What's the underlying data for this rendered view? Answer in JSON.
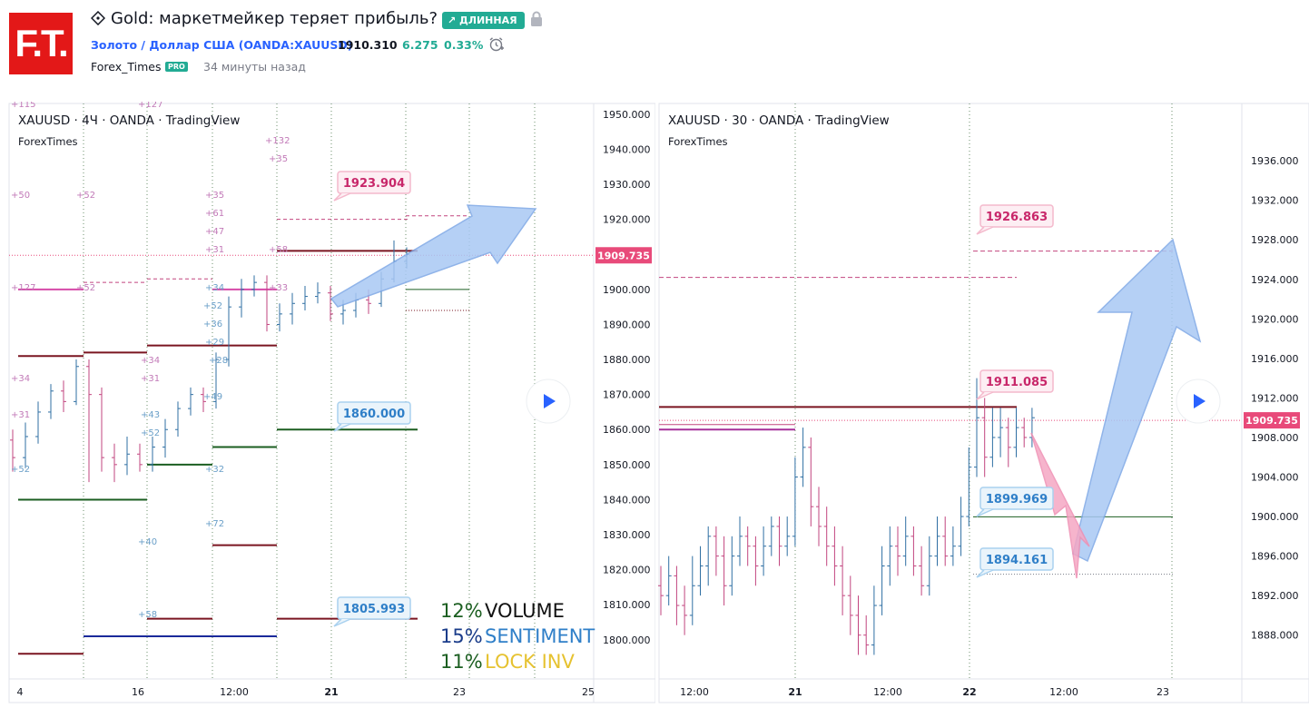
{
  "header": {
    "logo_text": "F.T.",
    "title": "Gold: маркетмейкер теряет прибыль?",
    "badge": "ДЛИННАЯ",
    "symbol_link": "Золото / Доллар США (OANDA:XAUUSD)",
    "price": "1910.310",
    "change": "6.275",
    "change_pct": "0.33%",
    "author": "Forex_Times",
    "author_badge": "PRO",
    "time_ago": "34 минуты назад",
    "colors": {
      "brand": "#e31818",
      "positive": "#22ab94",
      "link": "#2962ff"
    }
  },
  "chart_data": [
    {
      "type": "candlestick",
      "legend": "XAUUSD · 4Ч · OANDA · TradingView",
      "sublegend": "ForexTimes",
      "y_ticks": [
        "1950.000",
        "1940.000",
        "1930.000",
        "1920.000",
        "1910.000",
        "1900.000",
        "1890.000",
        "1880.000",
        "1870.000",
        "1860.000",
        "1850.000",
        "1840.000",
        "1830.000",
        "1820.000",
        "1810.000",
        "1800.000"
      ],
      "x_ticks": [
        "4",
        "16",
        "12:00",
        "21",
        "23",
        "25"
      ],
      "ylim": [
        1794,
        1951
      ],
      "last_price": "1909.735",
      "callouts": [
        {
          "text": "1923.904",
          "style": "pink"
        },
        {
          "text": "1860.000",
          "style": "blue"
        },
        {
          "text": "1805.993",
          "style": "blue"
        }
      ],
      "stats": [
        {
          "pct": "12%",
          "label": "VOLUME",
          "pct_color": "#1b5e20",
          "label_color": "#111111"
        },
        {
          "pct": "15%",
          "label": "SENTIMENT",
          "pct_color": "#1a3c8a",
          "label_color": "#2f7fc8"
        },
        {
          "pct": "11%",
          "label": "LOCK INV",
          "pct_color": "#1b5e20",
          "label_color": "#e6c230"
        }
      ],
      "volume_marks_pink": [
        "+115",
        "+127",
        "+132",
        "+35",
        "+50",
        "+52",
        "+35",
        "+61",
        "+47",
        "+31",
        "+58",
        "+127",
        "+52",
        "+33",
        "+34",
        "+34",
        "+31",
        "+31"
      ],
      "volume_marks_blue": [
        "+34",
        "+52",
        "+36",
        "+29",
        "+28",
        "+49",
        "+43",
        "+52",
        "+52",
        "+32",
        "+72",
        "+40",
        "+58"
      ],
      "candles": [
        [
          1857,
          1852,
          1860,
          1848
        ],
        [
          1852,
          1858,
          1862,
          1849
        ],
        [
          1858,
          1865,
          1868,
          1856
        ],
        [
          1865,
          1871,
          1873,
          1863
        ],
        [
          1871,
          1868,
          1874,
          1865
        ],
        [
          1868,
          1878,
          1880,
          1867
        ],
        [
          1878,
          1870,
          1880,
          1845
        ],
        [
          1870,
          1852,
          1872,
          1848
        ],
        [
          1852,
          1850,
          1856,
          1845
        ],
        [
          1850,
          1853,
          1858,
          1847
        ],
        [
          1853,
          1850,
          1856,
          1848
        ],
        [
          1850,
          1855,
          1858,
          1848
        ],
        [
          1855,
          1860,
          1863,
          1852
        ],
        [
          1860,
          1866,
          1868,
          1858
        ],
        [
          1866,
          1870,
          1872,
          1864
        ],
        [
          1870,
          1868,
          1872,
          1865
        ],
        [
          1868,
          1880,
          1882,
          1866
        ],
        [
          1880,
          1895,
          1898,
          1878
        ],
        [
          1895,
          1900,
          1903,
          1892
        ],
        [
          1900,
          1902,
          1904,
          1898
        ],
        [
          1902,
          1890,
          1904,
          1888
        ],
        [
          1890,
          1893,
          1896,
          1888
        ],
        [
          1893,
          1896,
          1899,
          1890
        ],
        [
          1896,
          1898,
          1901,
          1894
        ],
        [
          1898,
          1899,
          1902,
          1896
        ],
        [
          1899,
          1893,
          1901,
          1891
        ],
        [
          1893,
          1894,
          1897,
          1890
        ],
        [
          1894,
          1897,
          1899,
          1892
        ],
        [
          1897,
          1896,
          1900,
          1893
        ],
        [
          1896,
          1903,
          1905,
          1895
        ],
        [
          1903,
          1908,
          1914,
          1902
        ],
        [
          1908,
          1910,
          1912,
          1906
        ]
      ]
    },
    {
      "type": "candlestick",
      "legend": "XAUUSD · 30 · OANDA · TradingView",
      "sublegend": "ForexTimes",
      "y_ticks": [
        "1936.000",
        "1932.000",
        "1928.000",
        "1924.000",
        "1920.000",
        "1916.000",
        "1912.000",
        "1908.000",
        "1904.000",
        "1900.000",
        "1896.000",
        "1892.000",
        "1888.000"
      ],
      "x_ticks": [
        "12:00",
        "21",
        "12:00",
        "22",
        "12:00",
        "23"
      ],
      "ylim": [
        1885.4,
        1941.8
      ],
      "last_price": "1909.735",
      "callouts": [
        {
          "text": "1926.863",
          "style": "pink"
        },
        {
          "text": "1911.085",
          "style": "pink"
        },
        {
          "text": "1899.969",
          "style": "blue"
        },
        {
          "text": "1894.161",
          "style": "blue"
        }
      ],
      "candles": [
        [
          1893,
          1892,
          1895,
          1890
        ],
        [
          1892,
          1894,
          1896,
          1891
        ],
        [
          1894,
          1891,
          1895,
          1889
        ],
        [
          1891,
          1890,
          1893,
          1888
        ],
        [
          1890,
          1893,
          1896,
          1889
        ],
        [
          1893,
          1895,
          1897,
          1892
        ],
        [
          1895,
          1898,
          1899,
          1893
        ],
        [
          1898,
          1896,
          1899,
          1894
        ],
        [
          1896,
          1893,
          1898,
          1891
        ],
        [
          1893,
          1896,
          1898,
          1892
        ],
        [
          1896,
          1898,
          1900,
          1895
        ],
        [
          1898,
          1897,
          1899,
          1895
        ],
        [
          1897,
          1895,
          1898,
          1893
        ],
        [
          1895,
          1897,
          1899,
          1894
        ],
        [
          1897,
          1899,
          1900,
          1896
        ],
        [
          1899,
          1897,
          1900,
          1895
        ],
        [
          1897,
          1898,
          1900,
          1896
        ],
        [
          1898,
          1904,
          1906,
          1897
        ],
        [
          1904,
          1907,
          1909,
          1903
        ],
        [
          1907,
          1901,
          1908,
          1899
        ],
        [
          1901,
          1899,
          1903,
          1897
        ],
        [
          1899,
          1897,
          1901,
          1895
        ],
        [
          1897,
          1895,
          1899,
          1893
        ],
        [
          1895,
          1892,
          1897,
          1890
        ],
        [
          1892,
          1890,
          1894,
          1888
        ],
        [
          1890,
          1888,
          1892,
          1886
        ],
        [
          1888,
          1887,
          1890,
          1886
        ],
        [
          1887,
          1891,
          1893,
          1886
        ],
        [
          1891,
          1895,
          1897,
          1890
        ],
        [
          1895,
          1897,
          1899,
          1893
        ],
        [
          1897,
          1896,
          1899,
          1894
        ],
        [
          1896,
          1898,
          1900,
          1895
        ],
        [
          1898,
          1895,
          1899,
          1894
        ],
        [
          1895,
          1893,
          1897,
          1892
        ],
        [
          1893,
          1896,
          1898,
          1892
        ],
        [
          1896,
          1898,
          1900,
          1895
        ],
        [
          1898,
          1896,
          1900,
          1895
        ],
        [
          1896,
          1897,
          1899,
          1895
        ],
        [
          1897,
          1900,
          1902,
          1896
        ],
        [
          1900,
          1905,
          1907,
          1899
        ],
        [
          1905,
          1910,
          1914,
          1904
        ],
        [
          1910,
          1906,
          1912,
          1904
        ],
        [
          1906,
          1908,
          1911,
          1905
        ],
        [
          1908,
          1909,
          1911,
          1906
        ],
        [
          1909,
          1907,
          1910,
          1905
        ],
        [
          1907,
          1909,
          1911,
          1906
        ],
        [
          1909,
          1908,
          1910,
          1907
        ],
        [
          1908,
          1910,
          1911,
          1907
        ]
      ]
    }
  ]
}
